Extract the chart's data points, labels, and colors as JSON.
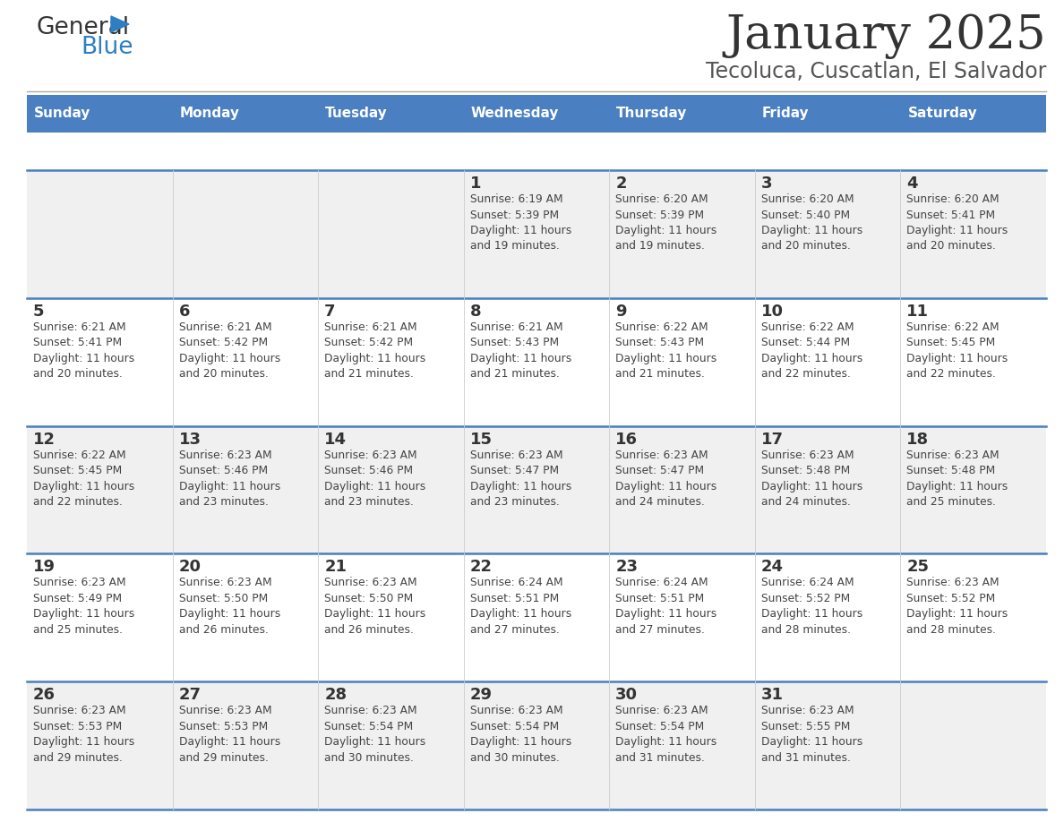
{
  "title": "January 2025",
  "subtitle": "Tecoluca, Cuscatlan, El Salvador",
  "days_of_week": [
    "Sunday",
    "Monday",
    "Tuesday",
    "Wednesday",
    "Thursday",
    "Friday",
    "Saturday"
  ],
  "header_bg": "#4a7fc1",
  "header_text": "#ffffff",
  "row_bg_even": "#f0f0f0",
  "row_bg_odd": "#ffffff",
  "cell_border_color": "#4a7fc1",
  "day_number_color": "#333333",
  "day_text_color": "#444444",
  "title_color": "#333333",
  "subtitle_color": "#555555",
  "logo_general_color": "#333333",
  "logo_blue_color": "#2e7fc1",
  "calendar": [
    [
      {
        "day": null,
        "sunrise": null,
        "sunset": null,
        "daylight": null
      },
      {
        "day": null,
        "sunrise": null,
        "sunset": null,
        "daylight": null
      },
      {
        "day": null,
        "sunrise": null,
        "sunset": null,
        "daylight": null
      },
      {
        "day": 1,
        "sunrise": "6:19 AM",
        "sunset": "5:39 PM",
        "daylight": "11 hours\nand 19 minutes."
      },
      {
        "day": 2,
        "sunrise": "6:20 AM",
        "sunset": "5:39 PM",
        "daylight": "11 hours\nand 19 minutes."
      },
      {
        "day": 3,
        "sunrise": "6:20 AM",
        "sunset": "5:40 PM",
        "daylight": "11 hours\nand 20 minutes."
      },
      {
        "day": 4,
        "sunrise": "6:20 AM",
        "sunset": "5:41 PM",
        "daylight": "11 hours\nand 20 minutes."
      }
    ],
    [
      {
        "day": 5,
        "sunrise": "6:21 AM",
        "sunset": "5:41 PM",
        "daylight": "11 hours\nand 20 minutes."
      },
      {
        "day": 6,
        "sunrise": "6:21 AM",
        "sunset": "5:42 PM",
        "daylight": "11 hours\nand 20 minutes."
      },
      {
        "day": 7,
        "sunrise": "6:21 AM",
        "sunset": "5:42 PM",
        "daylight": "11 hours\nand 21 minutes."
      },
      {
        "day": 8,
        "sunrise": "6:21 AM",
        "sunset": "5:43 PM",
        "daylight": "11 hours\nand 21 minutes."
      },
      {
        "day": 9,
        "sunrise": "6:22 AM",
        "sunset": "5:43 PM",
        "daylight": "11 hours\nand 21 minutes."
      },
      {
        "day": 10,
        "sunrise": "6:22 AM",
        "sunset": "5:44 PM",
        "daylight": "11 hours\nand 22 minutes."
      },
      {
        "day": 11,
        "sunrise": "6:22 AM",
        "sunset": "5:45 PM",
        "daylight": "11 hours\nand 22 minutes."
      }
    ],
    [
      {
        "day": 12,
        "sunrise": "6:22 AM",
        "sunset": "5:45 PM",
        "daylight": "11 hours\nand 22 minutes."
      },
      {
        "day": 13,
        "sunrise": "6:23 AM",
        "sunset": "5:46 PM",
        "daylight": "11 hours\nand 23 minutes."
      },
      {
        "day": 14,
        "sunrise": "6:23 AM",
        "sunset": "5:46 PM",
        "daylight": "11 hours\nand 23 minutes."
      },
      {
        "day": 15,
        "sunrise": "6:23 AM",
        "sunset": "5:47 PM",
        "daylight": "11 hours\nand 23 minutes."
      },
      {
        "day": 16,
        "sunrise": "6:23 AM",
        "sunset": "5:47 PM",
        "daylight": "11 hours\nand 24 minutes."
      },
      {
        "day": 17,
        "sunrise": "6:23 AM",
        "sunset": "5:48 PM",
        "daylight": "11 hours\nand 24 minutes."
      },
      {
        "day": 18,
        "sunrise": "6:23 AM",
        "sunset": "5:48 PM",
        "daylight": "11 hours\nand 25 minutes."
      }
    ],
    [
      {
        "day": 19,
        "sunrise": "6:23 AM",
        "sunset": "5:49 PM",
        "daylight": "11 hours\nand 25 minutes."
      },
      {
        "day": 20,
        "sunrise": "6:23 AM",
        "sunset": "5:50 PM",
        "daylight": "11 hours\nand 26 minutes."
      },
      {
        "day": 21,
        "sunrise": "6:23 AM",
        "sunset": "5:50 PM",
        "daylight": "11 hours\nand 26 minutes."
      },
      {
        "day": 22,
        "sunrise": "6:24 AM",
        "sunset": "5:51 PM",
        "daylight": "11 hours\nand 27 minutes."
      },
      {
        "day": 23,
        "sunrise": "6:24 AM",
        "sunset": "5:51 PM",
        "daylight": "11 hours\nand 27 minutes."
      },
      {
        "day": 24,
        "sunrise": "6:24 AM",
        "sunset": "5:52 PM",
        "daylight": "11 hours\nand 28 minutes."
      },
      {
        "day": 25,
        "sunrise": "6:23 AM",
        "sunset": "5:52 PM",
        "daylight": "11 hours\nand 28 minutes."
      }
    ],
    [
      {
        "day": 26,
        "sunrise": "6:23 AM",
        "sunset": "5:53 PM",
        "daylight": "11 hours\nand 29 minutes."
      },
      {
        "day": 27,
        "sunrise": "6:23 AM",
        "sunset": "5:53 PM",
        "daylight": "11 hours\nand 29 minutes."
      },
      {
        "day": 28,
        "sunrise": "6:23 AM",
        "sunset": "5:54 PM",
        "daylight": "11 hours\nand 30 minutes."
      },
      {
        "day": 29,
        "sunrise": "6:23 AM",
        "sunset": "5:54 PM",
        "daylight": "11 hours\nand 30 minutes."
      },
      {
        "day": 30,
        "sunrise": "6:23 AM",
        "sunset": "5:54 PM",
        "daylight": "11 hours\nand 31 minutes."
      },
      {
        "day": 31,
        "sunrise": "6:23 AM",
        "sunset": "5:55 PM",
        "daylight": "11 hours\nand 31 minutes."
      },
      {
        "day": null,
        "sunrise": null,
        "sunset": null,
        "daylight": null
      }
    ]
  ]
}
